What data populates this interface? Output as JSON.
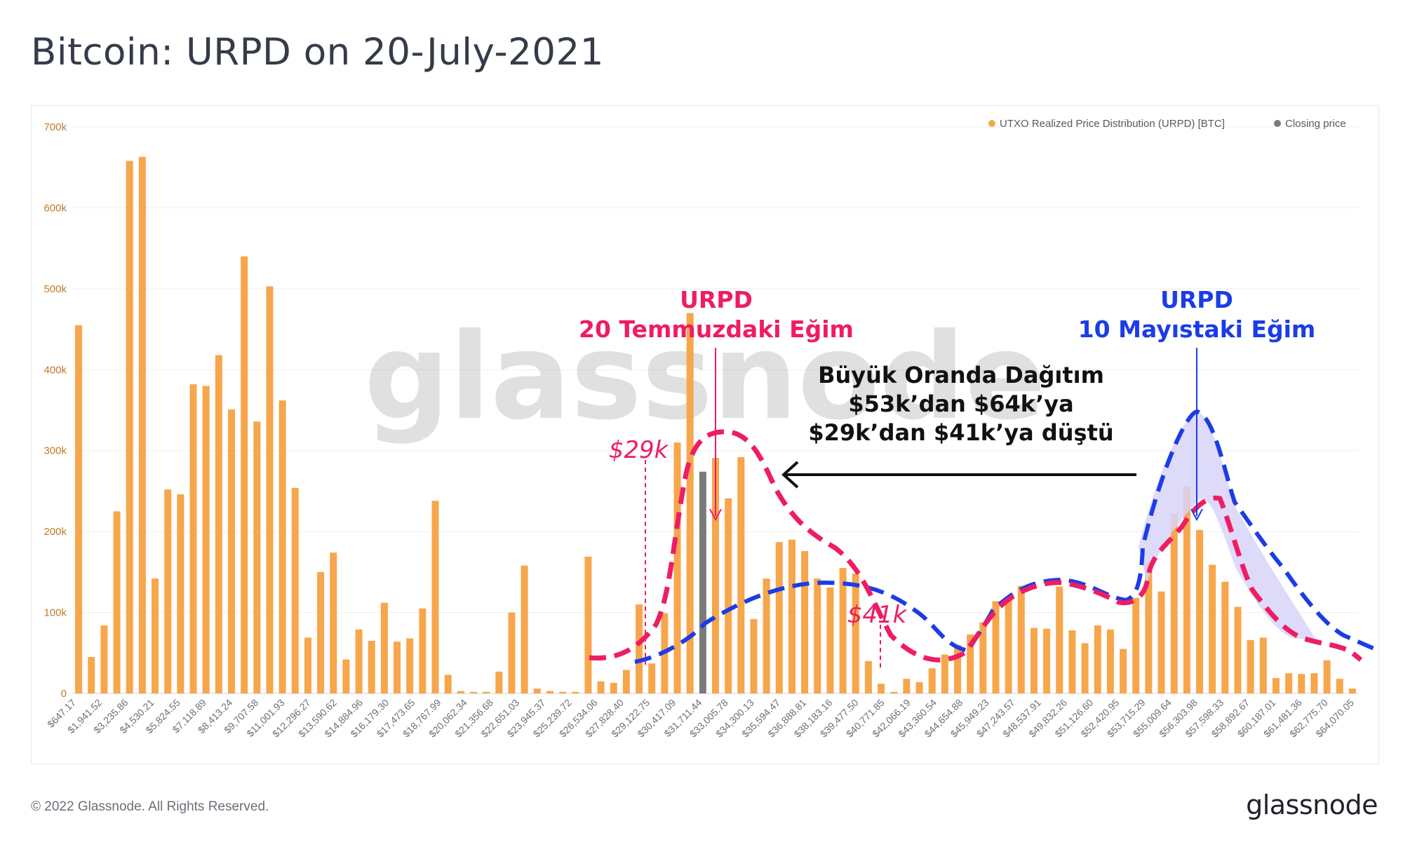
{
  "title": "Bitcoin: URPD on 20-July-2021",
  "footer": {
    "copyright": "© 2022 Glassnode. All Rights Reserved.",
    "logo": "glassnode"
  },
  "watermark": "glassnode",
  "colors": {
    "bar": "#f7a64b",
    "closing": "#7a7a7a",
    "pink": "#ee1d62",
    "blue": "#1c3ce6",
    "fill": "#d8d4f8",
    "axis_text": "#c07a2a",
    "tick_text": "#6b6f78"
  },
  "annotations": {
    "urpd_pink_line1": "URPD",
    "urpd_pink_line2": "20 Temmuzdaki Eğim",
    "urpd_blue_line1": "URPD",
    "urpd_blue_line2": "10 Mayıstaki Eğim",
    "label_29k": "$29k",
    "label_41k": "$41k",
    "note_line1": "Büyük Oranda Dağıtım",
    "note_line2": "$53k’dan $64k’ya",
    "note_line3": "$29k’dan $41k’ya düştü"
  },
  "chart_data": {
    "type": "bar",
    "title": "Bitcoin: URPD on 20-July-2021",
    "xlabel": "",
    "ylabel": "",
    "ylim": [
      0,
      700000
    ],
    "yticks": [
      "0",
      "100k",
      "200k",
      "300k",
      "400k",
      "500k",
      "600k",
      "700k"
    ],
    "legend": [
      "UTXO Realized Price Distribution (URPD) [BTC]",
      "Closing price"
    ],
    "legend_position": "top-right",
    "tick_labels": [
      "$647.17",
      "$1,941.52",
      "$3,235.86",
      "$4,530.21",
      "$5,824.55",
      "$7,118.89",
      "$8,413.24",
      "$9,707.58",
      "$11,001.93",
      "$12,296.27",
      "$13,590.62",
      "$14,884.96",
      "$16,179.30",
      "$17,473.65",
      "$18,767.99",
      "$20,062.34",
      "$21,356.68",
      "$22,651.03",
      "$23,945.37",
      "$25,239.72",
      "$26,534.06",
      "$27,828.40",
      "$29,122.75",
      "$30,417.09",
      "$31,711.44",
      "$33,005.78",
      "$34,300.13",
      "$35,594.47",
      "$36,888.81",
      "$38,183.16",
      "$39,477.50",
      "$40,771.85",
      "$42,066.19",
      "$43,360.54",
      "$44,654.88",
      "$45,949.23",
      "$47,243.57",
      "$48,537.91",
      "$49,832.26",
      "$51,126.60",
      "$52,420.95",
      "$53,715.29",
      "$55,009.64",
      "$56,303.98",
      "$57,598.33",
      "$58,892.67",
      "$60,187.01",
      "$61,481.36",
      "$62,775.70",
      "$64,070.05"
    ],
    "values": [
      455000,
      45000,
      84000,
      225000,
      658000,
      663000,
      142000,
      252000,
      246000,
      382000,
      380000,
      418000,
      351000,
      540000,
      336000,
      503000,
      362000,
      254000,
      69000,
      150000,
      174000,
      42000,
      79000,
      65000,
      112000,
      64000,
      68000,
      105000,
      238000,
      23000,
      3000,
      2000,
      2000,
      27000,
      100000,
      158000,
      6000,
      3000,
      2000,
      2000,
      169000,
      15000,
      13000,
      29000,
      110000,
      37000,
      99000,
      310000,
      470000,
      274000,
      291000,
      241000,
      292000,
      92000,
      142000,
      187000,
      190000,
      176000,
      142000,
      131000,
      155000,
      148000,
      40000,
      12000,
      2000,
      18000,
      14000,
      31000,
      48000,
      60000,
      73000,
      88000,
      114000,
      118000,
      133000,
      81000,
      80000,
      132000,
      78000,
      62000,
      84000,
      79000,
      55000,
      118000,
      162000,
      126000,
      222000,
      256000,
      202000,
      159000,
      138000,
      107000,
      66000,
      69000,
      19000,
      25000,
      24000,
      25000,
      41000,
      18000,
      6000
    ],
    "closing_price_index": 49
  }
}
